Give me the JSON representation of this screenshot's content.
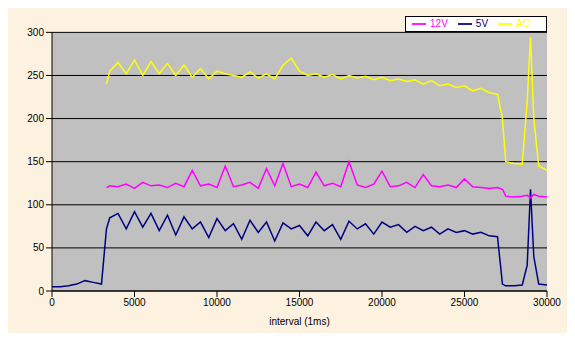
{
  "chart_data": {
    "type": "line",
    "xlabel": "interval (1ms)",
    "x": [
      0,
      500,
      1000,
      1500,
      2000,
      2500,
      3000,
      3300,
      3500,
      4000,
      4500,
      5000,
      5500,
      6000,
      6500,
      7000,
      7500,
      8000,
      8500,
      9000,
      9500,
      10000,
      10500,
      11000,
      11500,
      12000,
      12500,
      13000,
      13500,
      14000,
      14500,
      15000,
      15500,
      16000,
      16500,
      17000,
      17500,
      18000,
      18500,
      19000,
      19500,
      20000,
      20500,
      21000,
      21500,
      22000,
      22500,
      23000,
      23500,
      24000,
      24500,
      25000,
      25500,
      26000,
      26500,
      27000,
      27300,
      27500,
      28000,
      28500,
      28800,
      29000,
      29200,
      29500,
      30000
    ],
    "series": [
      {
        "name": "5V",
        "color": "#000080",
        "values": [
          5,
          5,
          6,
          8,
          12,
          10,
          8,
          72,
          85,
          90,
          72,
          92,
          74,
          90,
          70,
          88,
          65,
          86,
          72,
          80,
          62,
          84,
          70,
          78,
          60,
          82,
          68,
          80,
          58,
          79,
          72,
          76,
          64,
          80,
          70,
          77,
          60,
          81,
          72,
          78,
          66,
          80,
          74,
          77,
          68,
          75,
          70,
          74,
          66,
          72,
          68,
          70,
          66,
          68,
          64,
          63,
          8,
          6,
          6,
          7,
          30,
          118,
          40,
          8,
          7
        ]
      },
      {
        "name": "12V",
        "color": "#ff00ff",
        "values": [
          null,
          null,
          null,
          null,
          null,
          null,
          null,
          120,
          122,
          121,
          124,
          119,
          126,
          122,
          123,
          120,
          125,
          121,
          140,
          122,
          124,
          120,
          145,
          121,
          123,
          126,
          119,
          142,
          122,
          148,
          121,
          124,
          120,
          138,
          122,
          125,
          121,
          150,
          123,
          120,
          124,
          139,
          121,
          122,
          126,
          120,
          135,
          122,
          121,
          123,
          120,
          130,
          121,
          120,
          119,
          120,
          118,
          110,
          109,
          110,
          111,
          108,
          112,
          110,
          109
        ]
      },
      {
        "name": "AC",
        "color": "#ffff00",
        "values": [
          null,
          null,
          null,
          null,
          null,
          null,
          null,
          240,
          255,
          265,
          252,
          268,
          250,
          266,
          252,
          264,
          250,
          262,
          248,
          258,
          246,
          255,
          252,
          250,
          248,
          254,
          247,
          252,
          246,
          262,
          270,
          255,
          250,
          252,
          248,
          251,
          246,
          250,
          247,
          249,
          245,
          248,
          244,
          246,
          243,
          245,
          240,
          244,
          238,
          240,
          236,
          238,
          232,
          235,
          230,
          228,
          200,
          150,
          148,
          147,
          220,
          295,
          200,
          145,
          140
        ]
      }
    ],
    "xlim": [
      0,
      30000
    ],
    "xticks": [
      0,
      5000,
      10000,
      15000,
      20000,
      25000,
      30000
    ],
    "ylim": [
      0,
      300
    ],
    "yticks": [
      0,
      50,
      100,
      150,
      200,
      250,
      300
    ],
    "grid": true,
    "legend": "upper right"
  }
}
